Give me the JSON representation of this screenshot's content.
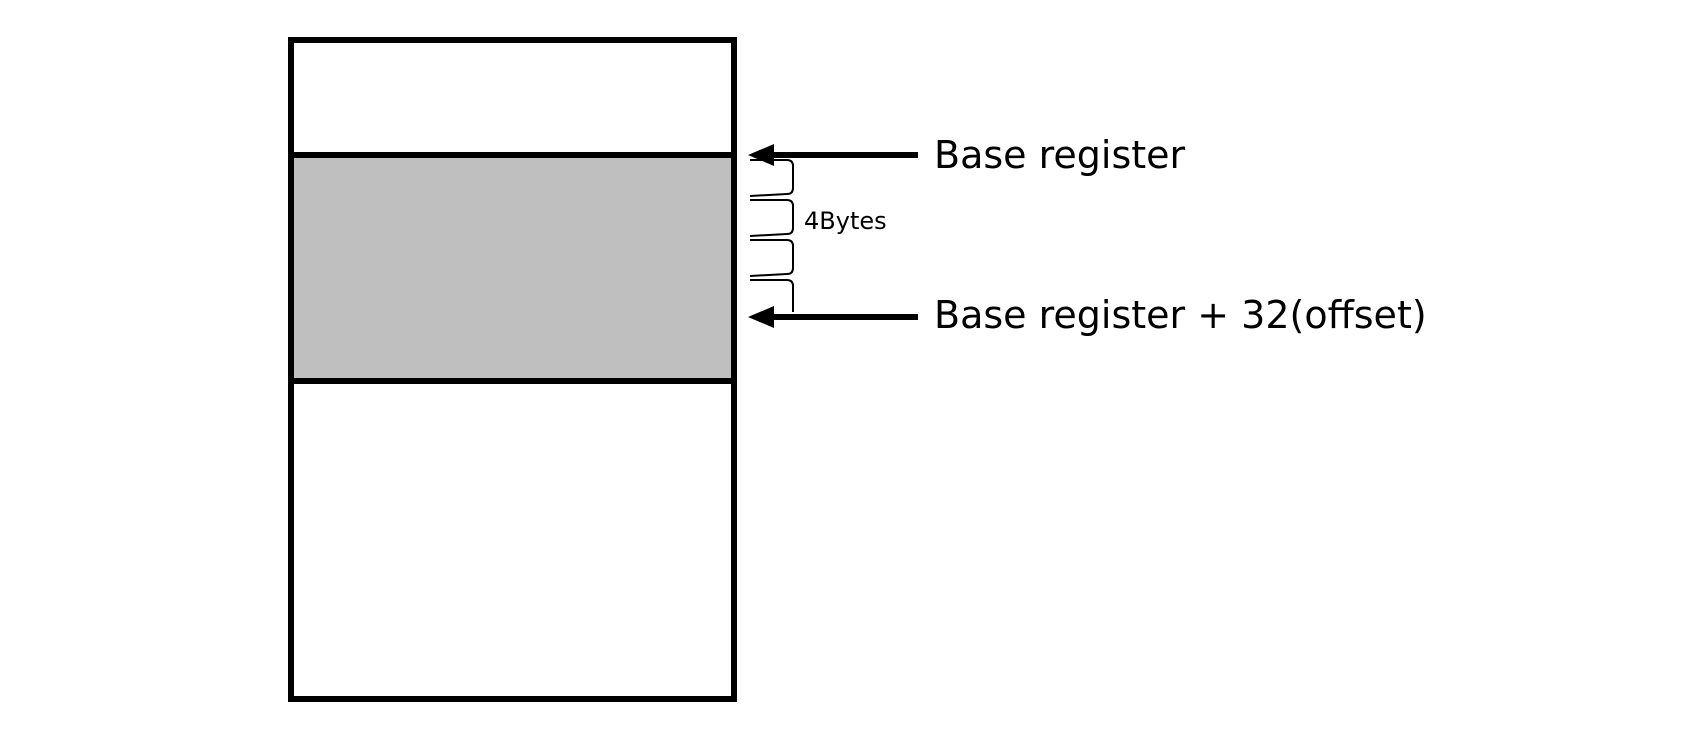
{
  "colors": {
    "line": "#000000",
    "highlight_fill": "#bfbfbf",
    "background": "#ffffff"
  },
  "labels": {
    "base_register": "Base register",
    "base_plus_offset": "Base register + 32(offset)",
    "word_size": "4Bytes"
  }
}
